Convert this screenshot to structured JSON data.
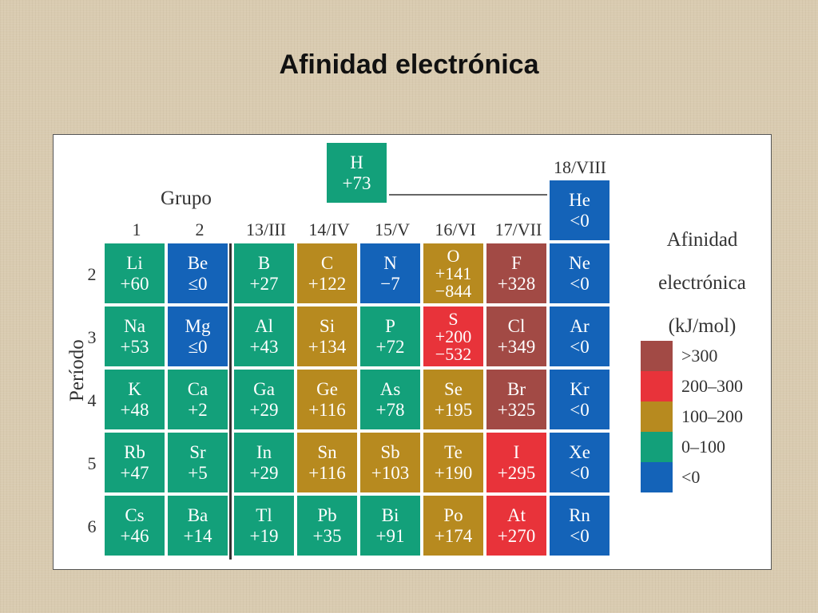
{
  "title": "Afinidad electrónica",
  "labels": {
    "group": "Grupo",
    "period": "Período",
    "legend_title_1": "Afinidad",
    "legend_title_2": "electrónica",
    "legend_title_3": "(kJ/mol)"
  },
  "group_headers": [
    "1",
    "2",
    "13/III",
    "14/IV",
    "15/V",
    "16/VI",
    "17/VII",
    "18/VIII"
  ],
  "period_labels": [
    "2",
    "3",
    "4",
    "5",
    "6"
  ],
  "colors": {
    "gt300": "#a24a45",
    "r200_300": "#e8333a",
    "r100_200": "#b78a1f",
    "r0_100": "#13a07a",
    "lt0": "#1463b8"
  },
  "legend": [
    {
      "label": ">300",
      "color": "#a24a45"
    },
    {
      "label": "200–300",
      "color": "#e8333a"
    },
    {
      "label": "100–200",
      "color": "#b78a1f"
    },
    {
      "label": "0–100",
      "color": "#13a07a"
    },
    {
      "label": "<0",
      "color": "#1463b8"
    }
  ],
  "hydrogen": {
    "symbol": "H",
    "value": "+73",
    "color": "#13a07a"
  },
  "noble_gases": [
    {
      "symbol": "He",
      "value": "<0"
    },
    {
      "symbol": "Ne",
      "value": "<0"
    },
    {
      "symbol": "Ar",
      "value": "<0"
    },
    {
      "symbol": "Kr",
      "value": "<0"
    },
    {
      "symbol": "Xe",
      "value": "<0"
    },
    {
      "symbol": "Rn",
      "value": "<0"
    }
  ],
  "rows": [
    [
      {
        "symbol": "Li",
        "value": "+60",
        "color": "#13a07a"
      },
      {
        "symbol": "Be",
        "value": "≤0",
        "color": "#1463b8"
      },
      {
        "symbol": "B",
        "value": "+27",
        "color": "#13a07a"
      },
      {
        "symbol": "C",
        "value": "+122",
        "color": "#b78a1f"
      },
      {
        "symbol": "N",
        "value": "−7",
        "color": "#1463b8"
      },
      {
        "symbol": "O",
        "value": "+141",
        "value2": "−844",
        "color": "#b78a1f"
      },
      {
        "symbol": "F",
        "value": "+328",
        "color": "#a24a45"
      }
    ],
    [
      {
        "symbol": "Na",
        "value": "+53",
        "color": "#13a07a"
      },
      {
        "symbol": "Mg",
        "value": "≤0",
        "color": "#1463b8"
      },
      {
        "symbol": "Al",
        "value": "+43",
        "color": "#13a07a"
      },
      {
        "symbol": "Si",
        "value": "+134",
        "color": "#b78a1f"
      },
      {
        "symbol": "P",
        "value": "+72",
        "color": "#13a07a"
      },
      {
        "symbol": "S",
        "value": "+200",
        "value2": "−532",
        "color": "#e8333a"
      },
      {
        "symbol": "Cl",
        "value": "+349",
        "color": "#a24a45"
      }
    ],
    [
      {
        "symbol": "K",
        "value": "+48",
        "color": "#13a07a"
      },
      {
        "symbol": "Ca",
        "value": "+2",
        "color": "#13a07a"
      },
      {
        "symbol": "Ga",
        "value": "+29",
        "color": "#13a07a"
      },
      {
        "symbol": "Ge",
        "value": "+116",
        "color": "#b78a1f"
      },
      {
        "symbol": "As",
        "value": "+78",
        "color": "#13a07a"
      },
      {
        "symbol": "Se",
        "value": "+195",
        "color": "#b78a1f"
      },
      {
        "symbol": "Br",
        "value": "+325",
        "color": "#a24a45"
      }
    ],
    [
      {
        "symbol": "Rb",
        "value": "+47",
        "color": "#13a07a"
      },
      {
        "symbol": "Sr",
        "value": "+5",
        "color": "#13a07a"
      },
      {
        "symbol": "In",
        "value": "+29",
        "color": "#13a07a"
      },
      {
        "symbol": "Sn",
        "value": "+116",
        "color": "#b78a1f"
      },
      {
        "symbol": "Sb",
        "value": "+103",
        "color": "#b78a1f"
      },
      {
        "symbol": "Te",
        "value": "+190",
        "color": "#b78a1f"
      },
      {
        "symbol": "I",
        "value": "+295",
        "color": "#e8333a"
      }
    ],
    [
      {
        "symbol": "Cs",
        "value": "+46",
        "color": "#13a07a"
      },
      {
        "symbol": "Ba",
        "value": "+14",
        "color": "#13a07a"
      },
      {
        "symbol": "Tl",
        "value": "+19",
        "color": "#13a07a"
      },
      {
        "symbol": "Pb",
        "value": "+35",
        "color": "#13a07a"
      },
      {
        "symbol": "Bi",
        "value": "+91",
        "color": "#13a07a"
      },
      {
        "symbol": "Po",
        "value": "+174",
        "color": "#b78a1f"
      },
      {
        "symbol": "At",
        "value": "+270",
        "color": "#e8333a"
      }
    ]
  ]
}
